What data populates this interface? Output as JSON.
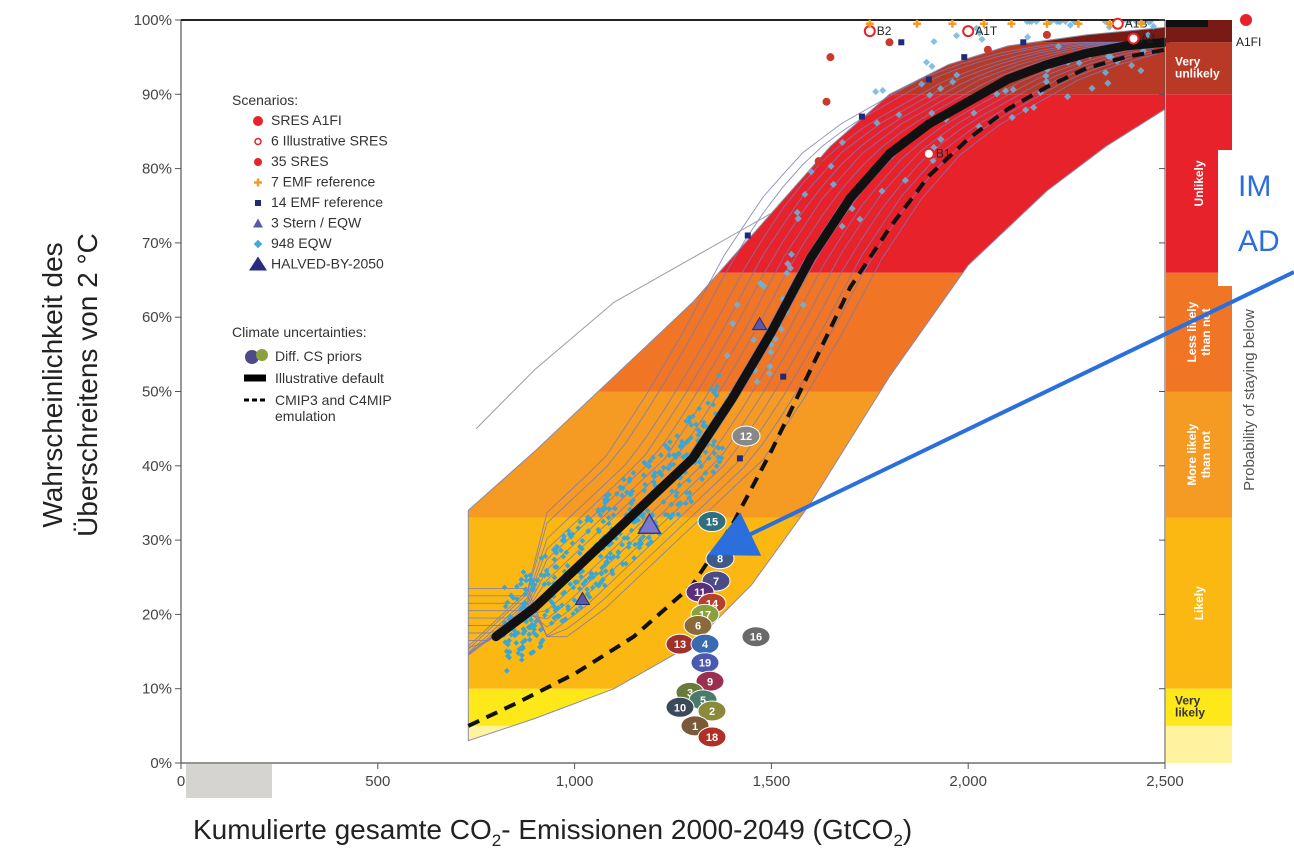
{
  "chart_data": {
    "type": "line",
    "title": "",
    "xlabel_prefix": "Kumulierte gesamte CO",
    "xlabel_sub": "2",
    "xlabel_mid": "- Emissionen 2000-2049 (GtCO",
    "xlabel_sub2": "2",
    "xlabel_suffix": ")",
    "ylabel_line1": "Wahrscheinlichkeit des",
    "ylabel_line2": "Überschreitens von 2 °C",
    "xlim": [
      0,
      2500
    ],
    "ylim": [
      0,
      100
    ],
    "x_ticks": [
      {
        "value": 0,
        "label": "0"
      },
      {
        "value": 500,
        "label": "500"
      },
      {
        "value": 1000,
        "label": "1,000"
      },
      {
        "value": 1500,
        "label": "1,500"
      },
      {
        "value": 2000,
        "label": "2,000"
      },
      {
        "value": 2500,
        "label": "2,500"
      }
    ],
    "y_ticks": [
      {
        "value": 0,
        "label": "0%"
      },
      {
        "value": 10,
        "label": "10%"
      },
      {
        "value": 20,
        "label": "20%"
      },
      {
        "value": 30,
        "label": "30%"
      },
      {
        "value": 40,
        "label": "40%"
      },
      {
        "value": 50,
        "label": "50%"
      },
      {
        "value": 60,
        "label": "60%"
      },
      {
        "value": 70,
        "label": "70%"
      },
      {
        "value": 80,
        "label": "80%"
      },
      {
        "value": 90,
        "label": "90%"
      },
      {
        "value": 100,
        "label": "100%"
      }
    ],
    "likelihood_bands": [
      {
        "from": 0,
        "to": 5,
        "color": "#fff3a0",
        "label": ""
      },
      {
        "from": 5,
        "to": 10,
        "color": "#ffe81a",
        "label": "Very likely"
      },
      {
        "from": 10,
        "to": 33,
        "color": "#fbb812",
        "label": "Likely"
      },
      {
        "from": 33,
        "to": 50,
        "color": "#f59a22",
        "label": "More likely than not"
      },
      {
        "from": 50,
        "to": 66,
        "color": "#f07524",
        "label": "Less likely than not"
      },
      {
        "from": 66,
        "to": 90,
        "color": "#e8222a",
        "label": "Unlikely"
      },
      {
        "from": 90,
        "to": 97,
        "color": "#b83a26",
        "label": "Very unlikely"
      },
      {
        "from": 97,
        "to": 100,
        "color": "#7a1a14",
        "label": ""
      }
    ],
    "side_axis_label": "Probability of staying below",
    "illustrative_default": {
      "x": [
        800,
        900,
        1000,
        1100,
        1200,
        1300,
        1400,
        1500,
        1600,
        1700,
        1800,
        1900,
        2000,
        2100,
        2200,
        2300,
        2400,
        2500
      ],
      "y": [
        17,
        21,
        26,
        31,
        36,
        41,
        49,
        58,
        68,
        76,
        82,
        86,
        89,
        92,
        94,
        95.5,
        96.5,
        97
      ]
    },
    "cmip3_c4mip_emulation": {
      "x": [
        730,
        850,
        1000,
        1150,
        1300,
        1400,
        1500,
        1600,
        1700,
        1800,
        1900,
        2000,
        2100,
        2200,
        2300,
        2400,
        2500
      ],
      "y": [
        5,
        8,
        12,
        17,
        24,
        32,
        42,
        53,
        64,
        72,
        79,
        84,
        88,
        91,
        93.5,
        95,
        96
      ]
    },
    "envelope_upper": {
      "x": [
        730,
        900,
        1100,
        1300,
        1500,
        1650,
        1800,
        1950,
        2100,
        2300,
        2500
      ],
      "y": [
        34,
        42,
        52,
        62,
        74,
        83,
        90,
        94,
        96.5,
        98,
        99
      ]
    },
    "envelope_lower": {
      "x": [
        730,
        900,
        1100,
        1300,
        1450,
        1600,
        1800,
        2000,
        2200,
        2350,
        2500
      ],
      "y": [
        3,
        6,
        10,
        16,
        24,
        35,
        52,
        67,
        77,
        83,
        88
      ]
    },
    "halved_by_2050": {
      "x": 1190,
      "y": 32
    },
    "sres_a1fi": {
      "x": 2620,
      "y": 98.5,
      "label": "A1FI"
    },
    "illustrative_sres": [
      {
        "label": "B2",
        "x": 1750,
        "y": 98.5
      },
      {
        "label": "A1T",
        "x": 2000,
        "y": 98.5
      },
      {
        "label": "A1B",
        "x": 2380,
        "y": 99.5
      },
      {
        "label": "A2",
        "x": 2420,
        "y": 97.5
      },
      {
        "label": "B1",
        "x": 1900,
        "y": 82
      }
    ],
    "stern_eqw": [
      {
        "x": 1190,
        "y": 32
      },
      {
        "x": 1470,
        "y": 59
      },
      {
        "x": 1020,
        "y": 22
      }
    ],
    "legend": {
      "heading": "Scenarios:",
      "items": [
        {
          "label": "SRES A1FI",
          "color": "#e8222a"
        },
        {
          "label": "6 Illustrative SRES",
          "color": "#e8222a"
        },
        {
          "label": "35 SRES",
          "color": "#e8222a"
        },
        {
          "label": "7 EMF reference",
          "color": "#f59a22"
        },
        {
          "label": "14 EMF reference",
          "color": "#1f2a7a"
        },
        {
          "label": "3 Stern / EQW",
          "color": "#1f2a7a"
        },
        {
          "label": "948 EQW",
          "color": "#3fa9e0"
        },
        {
          "label": "HALVED-BY-2050",
          "color": "#1f2a7a"
        }
      ],
      "heading2": "Climate uncertainties:",
      "items2": [
        {
          "label": "Diff. CS priors",
          "color": "#555555"
        },
        {
          "label": "Illustrative default",
          "color": "#000000"
        },
        {
          "label": "CMIP3 and C4MIP emulation",
          "color": "#000000"
        }
      ]
    },
    "priors": [
      {
        "label": "15",
        "y": 32.5
      },
      {
        "label": "8",
        "y": 27.5
      },
      {
        "label": "7",
        "y": 24.5
      },
      {
        "label": "11",
        "y": 23
      },
      {
        "label": "14",
        "y": 21.5
      },
      {
        "label": "17",
        "y": 20
      },
      {
        "label": "6",
        "y": 18.5
      },
      {
        "label": "16",
        "y": 17
      },
      {
        "label": "13",
        "y": 16
      },
      {
        "label": "4",
        "y": 16
      },
      {
        "label": "19",
        "y": 13.5
      },
      {
        "label": "9",
        "y": 11
      },
      {
        "label": "3",
        "y": 9.5
      },
      {
        "label": "5",
        "y": 8.5
      },
      {
        "label": "10",
        "y": 7.5
      },
      {
        "label": "2",
        "y": 7
      },
      {
        "label": "1",
        "y": 5
      },
      {
        "label": "18",
        "y": 3.5
      },
      {
        "label": "12",
        "y": 44
      }
    ],
    "callout_line1": "IM",
    "callout_line2": "AD"
  }
}
